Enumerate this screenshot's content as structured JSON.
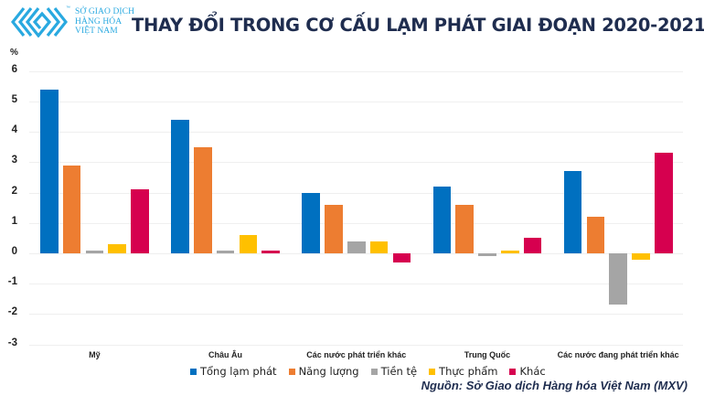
{
  "brand": {
    "name_lines": [
      "SỞ GIAO DỊCH",
      "HÀNG HÓA",
      "VIỆT NAM"
    ],
    "tm": "™",
    "color": "#29A9E0"
  },
  "header": {
    "title": "THAY ĐỔI TRONG CƠ CẤU LẠM PHÁT GIAI ĐOẠN 2020-2021"
  },
  "footer": {
    "source": "Nguồn: Sở Giao dịch Hàng hóa Việt Nam (MXV)"
  },
  "chart_data": {
    "type": "bar",
    "title": "THAY ĐỔI TRONG CƠ CẤU LẠM PHÁT GIAI ĐOẠN 2020-2021",
    "xlabel": "",
    "ylabel": "%",
    "ylim": [
      -3,
      6
    ],
    "yticks": [
      "6",
      "5",
      "4",
      "3",
      "2",
      "1",
      "0",
      "-1",
      "-2",
      "-3"
    ],
    "grid": true,
    "legend_position": "bottom",
    "categories": [
      "Mỹ",
      "Châu Âu",
      "Các nước phát triển khác",
      "Trung Quốc",
      "Các nước đang phát triển khác"
    ],
    "series": [
      {
        "name": "Tổng lạm phát",
        "color": "#0070C0",
        "values": [
          5.4,
          4.4,
          2.0,
          2.2,
          2.7
        ]
      },
      {
        "name": "Năng lượng",
        "color": "#ED7D31",
        "values": [
          2.9,
          3.5,
          1.6,
          1.6,
          1.2
        ]
      },
      {
        "name": "Tiền tệ",
        "color": "#A5A5A5",
        "values": [
          0.1,
          0.1,
          0.4,
          -0.1,
          -1.7
        ]
      },
      {
        "name": "Thực phẩm",
        "color": "#FFC000",
        "values": [
          0.3,
          0.6,
          0.4,
          0.1,
          -0.2
        ]
      },
      {
        "name": "Khác",
        "color": "#D6004F",
        "values": [
          2.1,
          0.1,
          -0.3,
          0.5,
          3.3
        ]
      }
    ],
    "source": "Nguồn: Sở Giao dịch Hàng hóa Việt Nam (MXV)"
  }
}
